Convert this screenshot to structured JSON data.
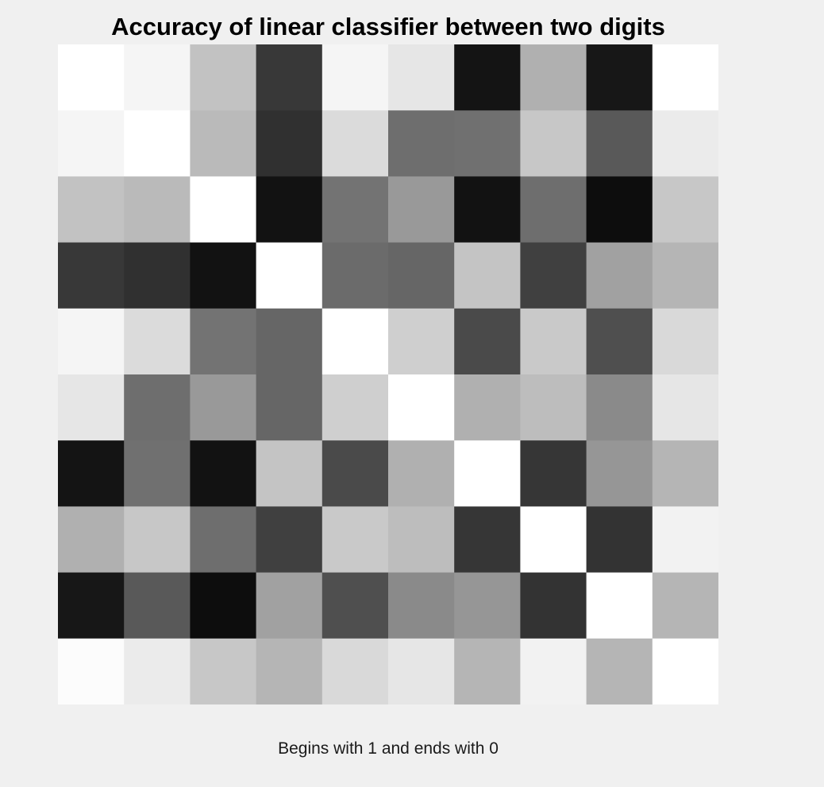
{
  "chart_data": {
    "type": "heatmap",
    "title": "Accuracy of linear classifier between two digits",
    "xlabel": "Begins with 1 and ends with 0",
    "ylabel": "",
    "colormap": "gray",
    "color_range": [
      0,
      1
    ],
    "rows": 10,
    "cols": 10,
    "values": [
      [
        1.0,
        0.96,
        0.76,
        0.22,
        0.96,
        0.9,
        0.08,
        0.69,
        0.09,
        1.0
      ],
      [
        0.96,
        1.0,
        0.73,
        0.19,
        0.86,
        0.43,
        0.44,
        0.78,
        0.35,
        0.92
      ],
      [
        0.76,
        0.73,
        1.0,
        0.07,
        0.45,
        0.6,
        0.07,
        0.43,
        0.05,
        0.78
      ],
      [
        0.22,
        0.19,
        0.07,
        1.0,
        0.42,
        0.4,
        0.77,
        0.25,
        0.63,
        0.71
      ],
      [
        0.96,
        0.86,
        0.45,
        0.4,
        1.0,
        0.81,
        0.29,
        0.79,
        0.31,
        0.85
      ],
      [
        0.9,
        0.43,
        0.6,
        0.4,
        0.81,
        1.0,
        0.69,
        0.74,
        0.54,
        0.9
      ],
      [
        0.08,
        0.44,
        0.07,
        0.77,
        0.29,
        0.69,
        1.0,
        0.21,
        0.59,
        0.71
      ],
      [
        0.69,
        0.78,
        0.43,
        0.25,
        0.79,
        0.74,
        0.21,
        1.0,
        0.2,
        0.95
      ],
      [
        0.09,
        0.35,
        0.05,
        0.63,
        0.31,
        0.54,
        0.59,
        0.2,
        1.0,
        0.71
      ],
      [
        0.99,
        0.92,
        0.78,
        0.71,
        0.85,
        0.9,
        0.71,
        0.95,
        0.71,
        1.0
      ]
    ]
  }
}
